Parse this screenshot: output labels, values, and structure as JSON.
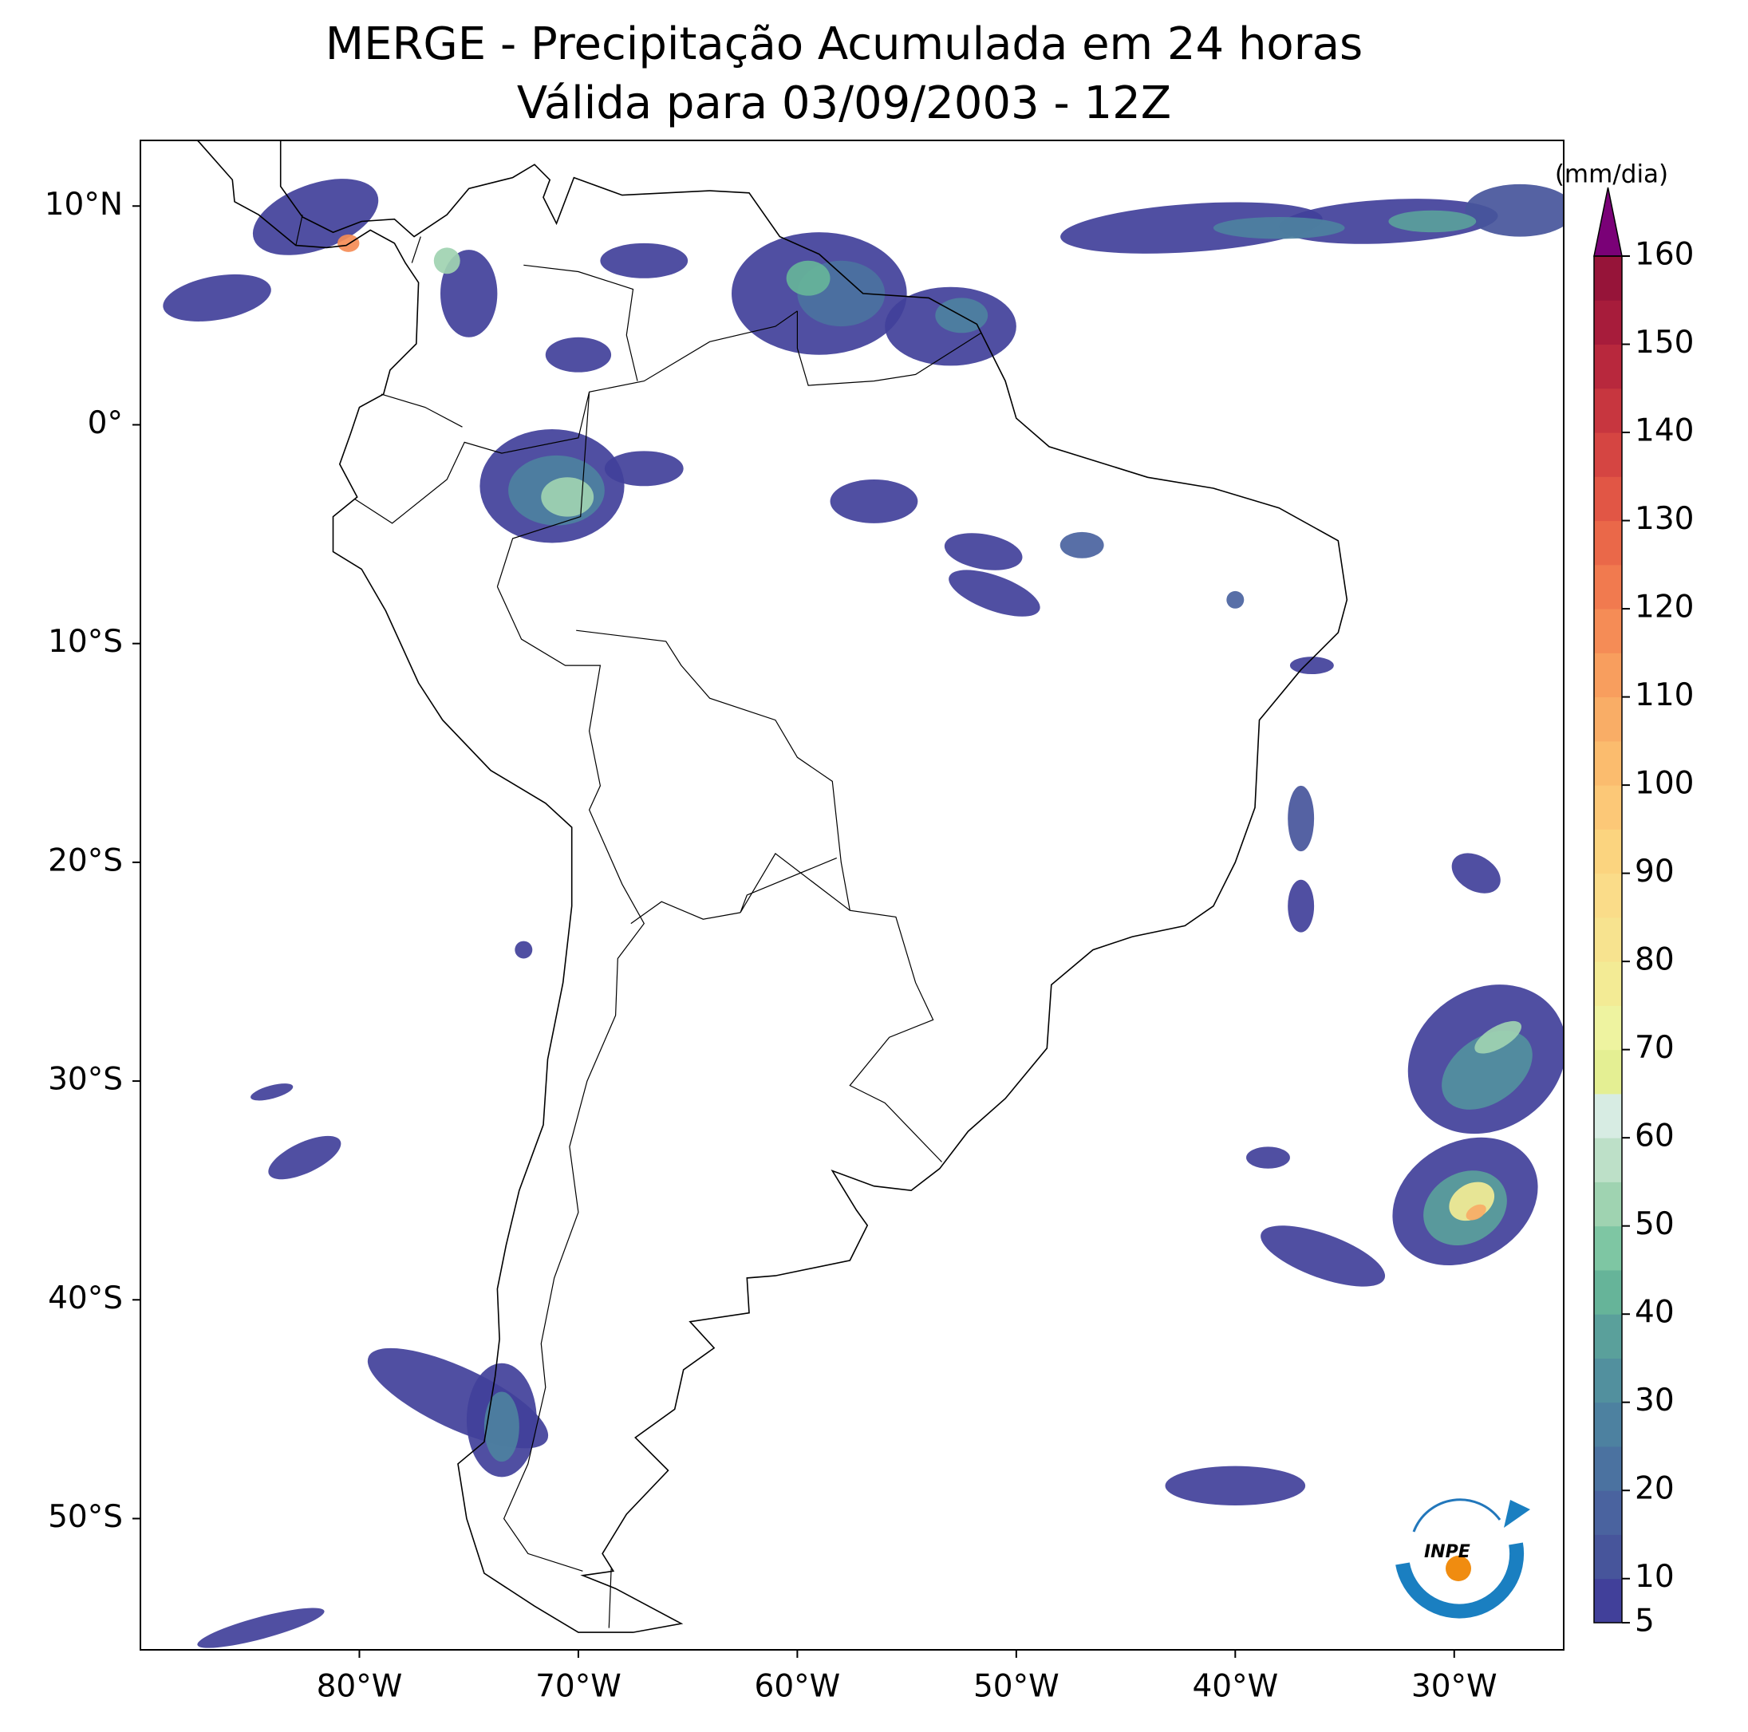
{
  "chart_data": {
    "type": "map",
    "title": "MERGE - Precipitação Acumulada em 24 horas",
    "subtitle": "Válida para 03/09/2003 - 12Z",
    "xlim": [
      -90,
      -25
    ],
    "ylim": [
      -56,
      13
    ],
    "xticks": [
      {
        "value": -80,
        "label": "80°W"
      },
      {
        "value": -70,
        "label": "70°W"
      },
      {
        "value": -60,
        "label": "60°W"
      },
      {
        "value": -50,
        "label": "50°W"
      },
      {
        "value": -40,
        "label": "40°W"
      },
      {
        "value": -30,
        "label": "30°W"
      }
    ],
    "yticks": [
      {
        "value": 10,
        "label": "10°N"
      },
      {
        "value": 0,
        "label": "0°"
      },
      {
        "value": -10,
        "label": "10°S"
      },
      {
        "value": -20,
        "label": "20°S"
      },
      {
        "value": -30,
        "label": "30°S"
      },
      {
        "value": -40,
        "label": "40°S"
      },
      {
        "value": -50,
        "label": "50°S"
      }
    ],
    "colorbar": {
      "label": "(mm/dia)",
      "lim": [
        5,
        160
      ],
      "ticks": [
        5,
        10,
        20,
        30,
        40,
        50,
        60,
        70,
        80,
        90,
        100,
        110,
        120,
        130,
        140,
        150,
        160
      ],
      "colors": [
        "#41409a",
        "#47559b",
        "#4a639f",
        "#4b72a0",
        "#4d81a0",
        "#52909e",
        "#5aa09b",
        "#66b499",
        "#7ec6a3",
        "#9fd3b1",
        "#bde0c8",
        "#d7ece3",
        "#e4ef93",
        "#eef3a0",
        "#f3eb95",
        "#f7e38f",
        "#fadc89",
        "#fbd47f",
        "#fcc877",
        "#fbbc6e",
        "#f9ad66",
        "#f89e5e",
        "#f58c56",
        "#f17a4f",
        "#ea6849",
        "#e15645",
        "#d54542",
        "#c7363f",
        "#b8283d",
        "#a71c3b",
        "#961439"
      ],
      "extend_color": "#7a0177"
    },
    "logo": "INPE"
  }
}
